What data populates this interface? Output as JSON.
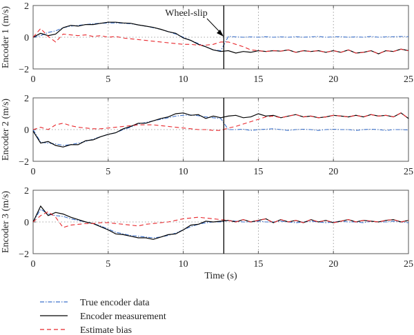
{
  "figure": {
    "legend": [
      {
        "label": "True encoder data",
        "color": "#3a6fc9",
        "dash": "6 2 1.5 2"
      },
      {
        "label": "Encoder measurement",
        "color": "#000000",
        "dash": ""
      },
      {
        "label": "Estimate bias",
        "color": "#e8262b",
        "dash": "6 4"
      }
    ],
    "annotation": {
      "text": "Wheel-slip",
      "x": 12.7
    }
  },
  "chart_data": [
    {
      "type": "line",
      "ylabel": "Encoder 1 (m/s)",
      "xlabel": "",
      "xlim": [
        0,
        25
      ],
      "ylim": [
        -2,
        2
      ],
      "xticks": [
        "0",
        "5",
        "10",
        "15",
        "20",
        "25"
      ],
      "yticks": [
        "2",
        "0",
        "−2"
      ],
      "grid": "dotted vertical at x ticks, dotted line at y=0",
      "x": [
        0.0,
        0.5,
        1.0,
        1.5,
        2.0,
        2.5,
        3.0,
        3.5,
        4.0,
        4.5,
        5.0,
        5.5,
        6.0,
        6.5,
        7.0,
        7.5,
        8.0,
        8.5,
        9.0,
        9.5,
        10.0,
        10.5,
        11.0,
        11.5,
        12.0,
        12.5,
        13.0,
        13.5,
        14.0,
        14.5,
        15.0,
        15.5,
        16.0,
        16.5,
        17.0,
        17.5,
        18.0,
        18.5,
        19.0,
        19.5,
        20.0,
        20.5,
        21.0,
        21.5,
        22.0,
        22.5,
        23.0,
        23.5,
        24.0,
        24.5,
        25.0
      ],
      "series": [
        {
          "name": "True encoder data",
          "values": [
            0.0,
            0.1,
            0.3,
            0.4,
            0.6,
            0.7,
            0.75,
            0.8,
            0.85,
            0.88,
            0.9,
            0.9,
            0.88,
            0.85,
            0.78,
            0.7,
            0.6,
            0.5,
            0.35,
            0.2,
            0.0,
            -0.2,
            -0.4,
            -0.6,
            -0.8,
            -0.85,
            0.05,
            0.02,
            0.0,
            0.02,
            0.0,
            0.03,
            0.0,
            0.02,
            0.0,
            0.03,
            0.0,
            0.02,
            0.05,
            0.0,
            0.02,
            0.03,
            0.0,
            0.02,
            0.0,
            0.05,
            0.0,
            0.02,
            0.03,
            0.05,
            0.03
          ]
        },
        {
          "name": "Encoder measurement",
          "values": [
            0.0,
            0.25,
            0.1,
            0.2,
            0.6,
            0.75,
            0.7,
            0.8,
            0.8,
            0.88,
            0.95,
            0.95,
            0.9,
            0.88,
            0.78,
            0.7,
            0.62,
            0.5,
            0.35,
            0.25,
            -0.05,
            -0.2,
            -0.45,
            -0.6,
            -0.8,
            -0.9,
            -0.85,
            -1.0,
            -0.9,
            -0.95,
            -0.85,
            -0.9,
            -0.85,
            -0.88,
            -0.8,
            -0.95,
            -0.85,
            -0.9,
            -0.85,
            -0.95,
            -0.85,
            -0.95,
            -0.8,
            -1.0,
            -0.95,
            -0.85,
            -1.05,
            -0.85,
            -0.9,
            -0.75,
            -0.85
          ]
        },
        {
          "name": "Estimate bias",
          "values": [
            0.0,
            0.55,
            0.05,
            -0.3,
            0.2,
            0.15,
            0.1,
            0.15,
            0.05,
            0.1,
            0.0,
            0.05,
            -0.05,
            -0.1,
            -0.15,
            -0.2,
            -0.25,
            -0.3,
            -0.35,
            -0.4,
            -0.45,
            -0.45,
            -0.5,
            -0.5,
            -0.45,
            -0.3,
            -0.3,
            -0.45,
            -0.6,
            -0.8,
            -0.85,
            -0.9,
            -0.85,
            -0.88,
            -0.8,
            -0.95,
            -0.85,
            -0.9,
            -0.85,
            -0.95,
            -0.85,
            -0.95,
            -0.8,
            -1.0,
            -0.95,
            -0.85,
            -1.05,
            -0.85,
            -0.9,
            -0.75,
            -0.85
          ]
        }
      ]
    },
    {
      "type": "line",
      "ylabel": "Encoder 2 (m/s)",
      "xlabel": "",
      "xlim": [
        0,
        25
      ],
      "ylim": [
        -2,
        2
      ],
      "xticks": [
        "0",
        "5",
        "10",
        "15",
        "20",
        "25"
      ],
      "yticks": [
        "2",
        "0",
        "−2"
      ],
      "grid": "dotted vertical at x ticks, dotted line at y=0",
      "x": [
        0.0,
        0.5,
        1.0,
        1.5,
        2.0,
        2.5,
        3.0,
        3.5,
        4.0,
        4.5,
        5.0,
        5.5,
        6.0,
        6.5,
        7.0,
        7.5,
        8.0,
        8.5,
        9.0,
        9.5,
        10.0,
        10.5,
        11.0,
        11.5,
        12.0,
        12.5,
        13.0,
        13.5,
        14.0,
        14.5,
        15.0,
        15.5,
        16.0,
        16.5,
        17.0,
        17.5,
        18.0,
        18.5,
        19.0,
        19.5,
        20.0,
        20.5,
        21.0,
        21.5,
        22.0,
        22.5,
        23.0,
        23.5,
        24.0,
        24.5,
        25.0
      ],
      "series": [
        {
          "name": "True encoder data",
          "values": [
            0.0,
            -0.8,
            -0.85,
            -0.9,
            -1.0,
            -0.95,
            -0.85,
            -0.75,
            -0.6,
            -0.45,
            -0.3,
            -0.2,
            0.0,
            0.15,
            0.35,
            0.45,
            0.55,
            0.65,
            0.75,
            0.85,
            0.9,
            0.92,
            0.88,
            0.8,
            0.75,
            0.7,
            0.0,
            0.0,
            0.02,
            -0.05,
            0.0,
            0.02,
            0.05,
            0.0,
            -0.05,
            0.0,
            0.02,
            0.0,
            -0.05,
            0.0,
            0.02,
            0.0,
            0.0,
            -0.05,
            0.0,
            0.02,
            0.0,
            -0.05,
            0.0,
            0.0,
            -0.02
          ]
        },
        {
          "name": "Encoder measurement",
          "values": [
            -0.1,
            -0.85,
            -0.75,
            -1.0,
            -1.1,
            -0.95,
            -0.95,
            -0.7,
            -0.65,
            -0.45,
            -0.3,
            -0.2,
            0.05,
            0.2,
            0.4,
            0.4,
            0.55,
            0.7,
            0.8,
            1.0,
            1.05,
            0.9,
            0.95,
            0.7,
            0.85,
            0.75,
            0.85,
            0.9,
            0.75,
            0.8,
            1.0,
            0.85,
            0.9,
            0.75,
            0.85,
            0.95,
            0.8,
            0.85,
            0.75,
            0.8,
            0.9,
            0.85,
            0.8,
            0.9,
            0.8,
            0.95,
            0.85,
            0.9,
            0.8,
            1.05,
            0.7
          ]
        },
        {
          "name": "Estimate bias",
          "values": [
            0.0,
            0.15,
            0.0,
            0.3,
            0.4,
            0.25,
            0.15,
            0.1,
            0.05,
            0.05,
            0.1,
            0.15,
            0.2,
            0.25,
            0.3,
            0.3,
            0.3,
            0.25,
            0.2,
            0.15,
            0.1,
            0.05,
            0.0,
            0.0,
            -0.05,
            -0.05,
            0.1,
            0.2,
            0.35,
            0.5,
            0.65,
            0.8,
            0.85,
            0.75,
            0.85,
            0.95,
            0.8,
            0.85,
            0.75,
            0.8,
            0.9,
            0.85,
            0.8,
            0.9,
            0.8,
            0.95,
            0.85,
            0.9,
            0.8,
            1.05,
            0.7
          ]
        }
      ]
    },
    {
      "type": "line",
      "ylabel": "Encoder 3 (m/s)",
      "xlabel": "Time (s)",
      "xlim": [
        0,
        25
      ],
      "ylim": [
        -2,
        2
      ],
      "xticks": [
        "0",
        "5",
        "10",
        "15",
        "20",
        "25"
      ],
      "yticks": [
        "2",
        "0",
        "−2"
      ],
      "grid": "dotted vertical at x ticks, dotted line at y=0",
      "x": [
        0.0,
        0.5,
        1.0,
        1.5,
        2.0,
        2.5,
        3.0,
        3.5,
        4.0,
        4.5,
        5.0,
        5.5,
        6.0,
        6.5,
        7.0,
        7.5,
        8.0,
        8.5,
        9.0,
        9.5,
        10.0,
        10.5,
        11.0,
        11.5,
        12.0,
        12.5,
        13.0,
        13.5,
        14.0,
        14.5,
        15.0,
        15.5,
        16.0,
        16.5,
        17.0,
        17.5,
        18.0,
        18.5,
        19.0,
        19.5,
        20.0,
        20.5,
        21.0,
        21.5,
        22.0,
        22.5,
        23.0,
        23.5,
        24.0,
        24.5,
        25.0
      ],
      "series": [
        {
          "name": "True encoder data",
          "values": [
            0.0,
            0.8,
            0.5,
            0.4,
            0.35,
            0.2,
            0.1,
            0.0,
            -0.1,
            -0.25,
            -0.45,
            -0.65,
            -0.75,
            -0.85,
            -0.9,
            -0.95,
            -1.0,
            -0.95,
            -0.85,
            -0.7,
            -0.5,
            -0.3,
            -0.15,
            -0.05,
            0.0,
            0.0,
            0.1,
            0.05,
            0.0,
            0.0,
            0.05,
            0.0,
            0.0,
            0.05,
            0.0,
            -0.05,
            0.0,
            0.05,
            0.0,
            -0.05,
            0.0,
            0.05,
            0.0,
            0.0,
            -0.05,
            0.05,
            0.0,
            0.0,
            0.05,
            0.0,
            -0.05
          ]
        },
        {
          "name": "Encoder measurement",
          "values": [
            0.0,
            1.0,
            0.4,
            0.6,
            0.5,
            0.3,
            0.15,
            0.0,
            -0.1,
            -0.3,
            -0.5,
            -0.75,
            -0.8,
            -0.9,
            -1.0,
            -1.0,
            -1.1,
            -0.95,
            -0.8,
            -0.75,
            -0.5,
            -0.2,
            -0.15,
            0.05,
            0.0,
            0.05,
            0.1,
            0.0,
            0.15,
            0.0,
            0.1,
            0.2,
            -0.05,
            0.15,
            0.0,
            0.1,
            -0.05,
            0.15,
            0.0,
            0.1,
            -0.05,
            0.05,
            0.15,
            0.0,
            0.1,
            0.05,
            0.0,
            0.1,
            0.15,
            0.0,
            0.1
          ]
        },
        {
          "name": "Estimate bias",
          "values": [
            0.0,
            0.4,
            0.65,
            0.3,
            -0.35,
            -0.2,
            -0.15,
            -0.1,
            -0.1,
            -0.05,
            -0.05,
            -0.1,
            -0.15,
            -0.2,
            -0.25,
            -0.15,
            -0.1,
            -0.05,
            0.0,
            0.1,
            0.2,
            0.25,
            0.3,
            0.25,
            0.2,
            0.15,
            0.1,
            0.0,
            0.15,
            0.0,
            0.1,
            0.2,
            -0.05,
            0.15,
            0.0,
            0.1,
            -0.05,
            0.15,
            0.0,
            0.1,
            -0.05,
            0.05,
            0.15,
            0.0,
            0.1,
            0.05,
            0.0,
            0.1,
            0.15,
            0.0,
            0.1
          ]
        }
      ]
    }
  ]
}
